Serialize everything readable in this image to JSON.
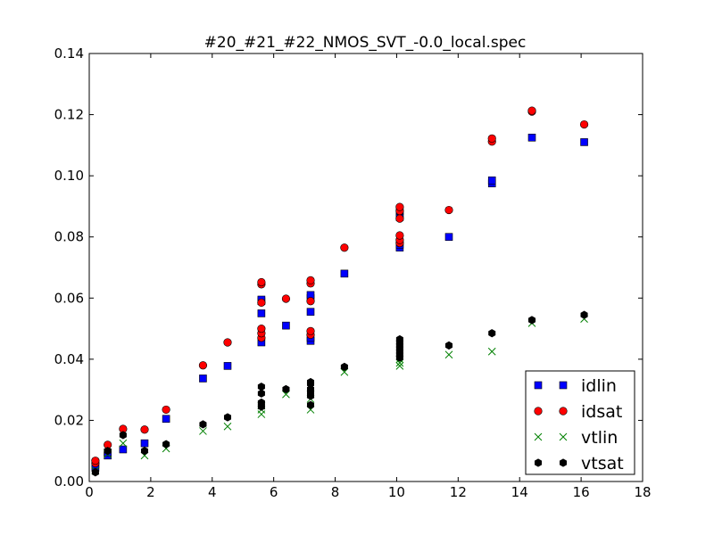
{
  "chart_data": {
    "type": "scatter",
    "title": "#20_#21_#22_NMOS_SVT_-0.0_local.spec",
    "xlabel": "",
    "ylabel": "",
    "xlim": [
      0,
      18
    ],
    "ylim": [
      0,
      0.14
    ],
    "xticks": [
      "0",
      "2",
      "4",
      "6",
      "8",
      "10",
      "12",
      "14",
      "16",
      "18"
    ],
    "yticks": [
      "0.00",
      "0.02",
      "0.04",
      "0.06",
      "0.08",
      "0.10",
      "0.12",
      "0.14"
    ],
    "grid": false,
    "legend_position": "lower-right",
    "series": [
      {
        "name": "idlin",
        "marker": "square",
        "color": "#0000ff",
        "points": [
          [
            0.2,
            0.0045
          ],
          [
            0.2,
            0.0055
          ],
          [
            0.6,
            0.0085
          ],
          [
            0.6,
            0.0095
          ],
          [
            1.1,
            0.0105
          ],
          [
            1.8,
            0.0125
          ],
          [
            2.5,
            0.0205
          ],
          [
            3.7,
            0.0337
          ],
          [
            4.5,
            0.0378
          ],
          [
            5.6,
            0.0455
          ],
          [
            5.6,
            0.055
          ],
          [
            5.6,
            0.059
          ],
          [
            5.6,
            0.0595
          ],
          [
            6.4,
            0.051
          ],
          [
            7.2,
            0.046
          ],
          [
            7.2,
            0.047
          ],
          [
            7.2,
            0.0555
          ],
          [
            7.2,
            0.06
          ],
          [
            7.2,
            0.061
          ],
          [
            8.3,
            0.068
          ],
          [
            10.1,
            0.0765
          ],
          [
            10.1,
            0.0775
          ],
          [
            10.1,
            0.0865
          ],
          [
            10.1,
            0.0875
          ],
          [
            10.1,
            0.0885
          ],
          [
            11.7,
            0.08
          ],
          [
            13.1,
            0.0975
          ],
          [
            13.1,
            0.0985
          ],
          [
            14.4,
            0.1125
          ],
          [
            16.1,
            0.111
          ]
        ]
      },
      {
        "name": "idsat",
        "marker": "circle",
        "color": "#ff0000",
        "points": [
          [
            0.2,
            0.006
          ],
          [
            0.2,
            0.0068
          ],
          [
            0.6,
            0.012
          ],
          [
            1.1,
            0.0172
          ],
          [
            1.8,
            0.017
          ],
          [
            2.5,
            0.0235
          ],
          [
            3.7,
            0.038
          ],
          [
            4.5,
            0.0455
          ],
          [
            5.6,
            0.047
          ],
          [
            5.6,
            0.0485
          ],
          [
            5.6,
            0.05
          ],
          [
            5.6,
            0.0585
          ],
          [
            5.6,
            0.0645
          ],
          [
            5.6,
            0.0652
          ],
          [
            6.4,
            0.0598
          ],
          [
            7.2,
            0.048
          ],
          [
            7.2,
            0.0492
          ],
          [
            7.2,
            0.059
          ],
          [
            7.2,
            0.0648
          ],
          [
            7.2,
            0.0658
          ],
          [
            8.3,
            0.0765
          ],
          [
            10.1,
            0.078
          ],
          [
            10.1,
            0.079
          ],
          [
            10.1,
            0.0805
          ],
          [
            10.1,
            0.086
          ],
          [
            10.1,
            0.0885
          ],
          [
            10.1,
            0.0898
          ],
          [
            11.7,
            0.0888
          ],
          [
            13.1,
            0.1112
          ],
          [
            13.1,
            0.1122
          ],
          [
            14.4,
            0.121
          ],
          [
            14.4,
            0.1213
          ],
          [
            16.1,
            0.1168
          ]
        ]
      },
      {
        "name": "vtlin",
        "marker": "x",
        "color": "#008000",
        "points": [
          [
            0.2,
            0.0035
          ],
          [
            0.6,
            0.009
          ],
          [
            1.1,
            0.0125
          ],
          [
            1.8,
            0.0085
          ],
          [
            2.5,
            0.0108
          ],
          [
            3.7,
            0.0165
          ],
          [
            4.5,
            0.018
          ],
          [
            5.6,
            0.022
          ],
          [
            5.6,
            0.0235
          ],
          [
            5.6,
            0.0248
          ],
          [
            6.4,
            0.0285
          ],
          [
            7.2,
            0.0235
          ],
          [
            7.2,
            0.027
          ],
          [
            7.2,
            0.0285
          ],
          [
            8.3,
            0.0358
          ],
          [
            10.1,
            0.0378
          ],
          [
            10.1,
            0.0388
          ],
          [
            10.1,
            0.04
          ],
          [
            11.7,
            0.0415
          ],
          [
            13.1,
            0.0425
          ],
          [
            14.4,
            0.0518
          ],
          [
            16.1,
            0.0532
          ]
        ]
      },
      {
        "name": "vtsat",
        "marker": "hexagon",
        "color": "#000000",
        "points": [
          [
            0.2,
            0.003
          ],
          [
            0.6,
            0.01
          ],
          [
            1.1,
            0.0152
          ],
          [
            1.8,
            0.01
          ],
          [
            2.5,
            0.0122
          ],
          [
            3.7,
            0.0187
          ],
          [
            4.5,
            0.021
          ],
          [
            5.6,
            0.0245
          ],
          [
            5.6,
            0.0258
          ],
          [
            5.6,
            0.0288
          ],
          [
            5.6,
            0.031
          ],
          [
            6.4,
            0.0302
          ],
          [
            7.2,
            0.025
          ],
          [
            7.2,
            0.028
          ],
          [
            7.2,
            0.0292
          ],
          [
            7.2,
            0.0302
          ],
          [
            7.2,
            0.032
          ],
          [
            7.2,
            0.0325
          ],
          [
            8.3,
            0.0375
          ],
          [
            10.1,
            0.0405
          ],
          [
            10.1,
            0.0415
          ],
          [
            10.1,
            0.0425
          ],
          [
            10.1,
            0.0435
          ],
          [
            10.1,
            0.0445
          ],
          [
            10.1,
            0.0455
          ],
          [
            10.1,
            0.0465
          ],
          [
            11.7,
            0.0445
          ],
          [
            13.1,
            0.0485
          ],
          [
            14.4,
            0.0528
          ],
          [
            16.1,
            0.0545
          ]
        ]
      }
    ]
  }
}
